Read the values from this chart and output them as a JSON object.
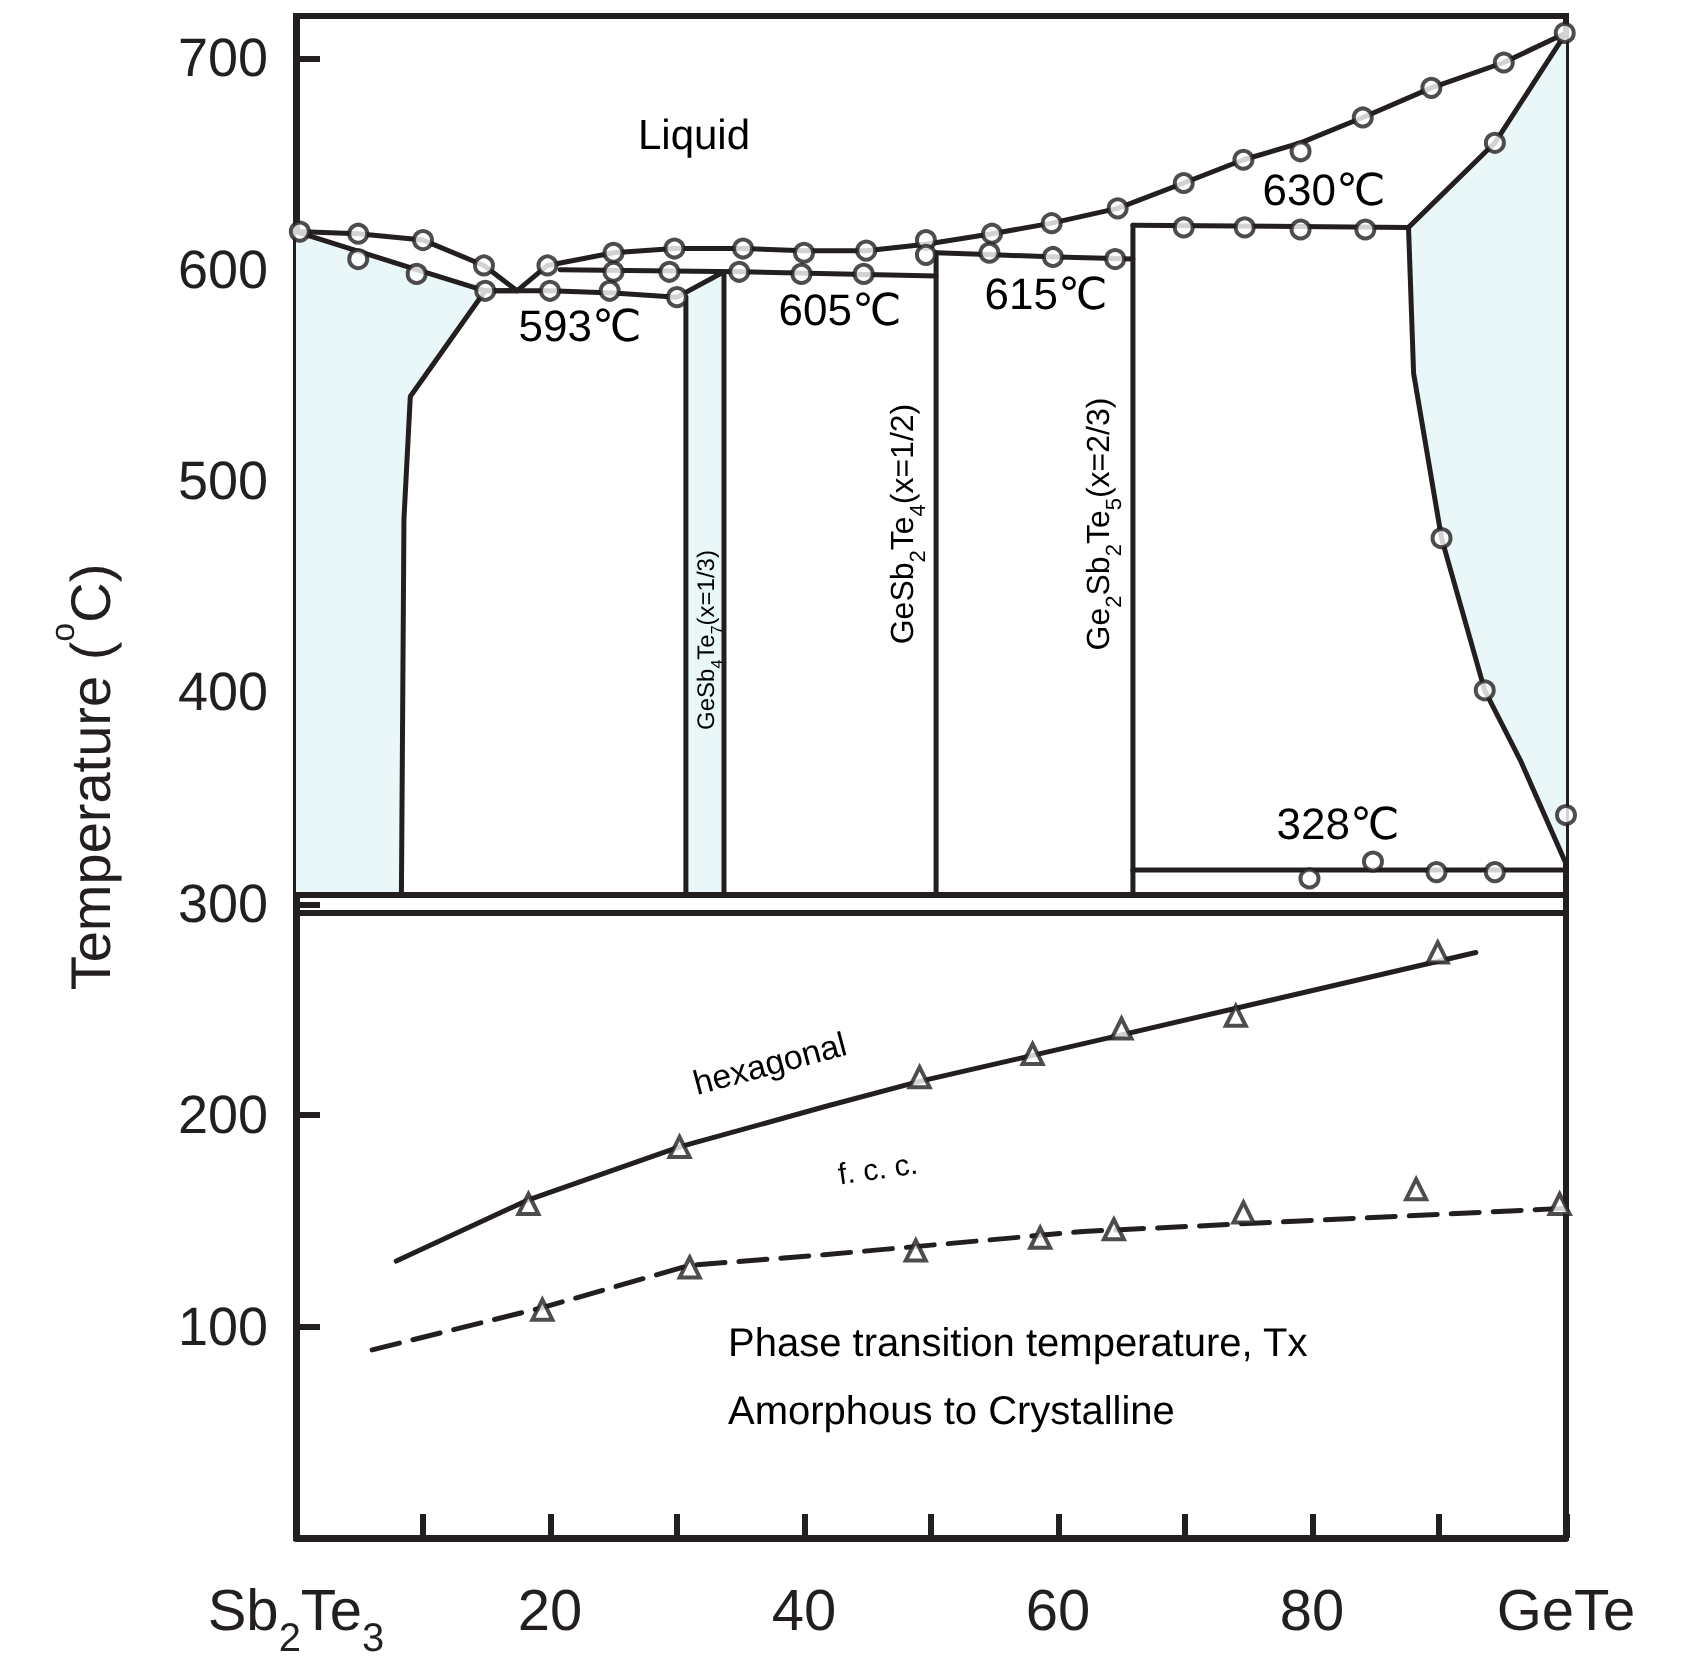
{
  "chart_data": {
    "type": "line",
    "ylabel": "Temperature ($^{o}$C)",
    "xlim": [
      0,
      100
    ],
    "ylim": [
      0,
      720
    ],
    "xticks": [
      {
        "value": 0,
        "label": "Sb$_{2}$Te$_{3}$"
      },
      {
        "value": 10,
        "label": null
      },
      20,
      {
        "value": 30,
        "label": null
      },
      40,
      {
        "value": 50,
        "label": null
      },
      60,
      {
        "value": 70,
        "label": null
      },
      80,
      {
        "value": 90,
        "label": null
      },
      {
        "value": 100,
        "label": "GeTe"
      }
    ],
    "yticks": [
      100,
      200,
      300,
      400,
      500,
      600,
      700
    ],
    "series": [
      {
        "color": "#231f20",
        "x": [
          0,
          4.9,
          10,
          14.8,
          17.4,
          19.8,
          25,
          29.8,
          35.2,
          40,
          44.9,
          49.6,
          54.8,
          59.5,
          64.7,
          69.9,
          74.6,
          79.1,
          84,
          89.4,
          95.1,
          100
        ],
        "values": [
          618,
          617,
          614,
          602,
          590,
          602,
          608,
          610,
          610,
          609,
          609,
          612,
          617,
          622,
          629,
          641,
          652,
          660,
          672,
          686,
          698,
          712
        ]
      },
      {
        "color": "#231f20",
        "x": [
          0,
          9.5,
          14.9,
          17.4
        ],
        "values": [
          618,
          600,
          590,
          590
        ]
      },
      {
        "color": "#231f20",
        "x": [
          14.9,
          20,
          25,
          30,
          33.7
        ],
        "values": [
          590,
          590,
          589,
          587,
          599
        ]
      },
      {
        "color": "#231f20",
        "x": [
          20.8,
          35,
          50.4
        ],
        "values": [
          600,
          599,
          597
        ]
      },
      {
        "color": "#231f20",
        "x": [
          50.4,
          55,
          60,
          65.9
        ],
        "values": [
          608,
          607,
          606,
          605
        ]
      },
      {
        "color": "#231f20",
        "x": [
          65.9,
          87.6
        ],
        "values": [
          621,
          620
        ]
      },
      {
        "color": "#231f20",
        "x": [
          87.6,
          94.4,
          100
        ],
        "values": [
          620,
          660,
          712
        ]
      },
      {
        "color": "#231f20",
        "x": [
          87.6,
          88,
          90.2,
          93.6,
          96.4,
          100
        ],
        "values": [
          620,
          551,
          473,
          401,
          368,
          319
        ]
      },
      {
        "color": "#231f20",
        "x": [
          14.9,
          9,
          8.5,
          8.3
        ],
        "values": [
          590,
          540,
          482,
          304
        ]
      },
      {
        "color": "#231f20",
        "x": [
          30.7,
          30.7
        ],
        "values": [
          304,
          587
        ]
      },
      {
        "color": "#231f20",
        "x": [
          33.7,
          33.7
        ],
        "values": [
          304,
          599
        ]
      },
      {
        "color": "#231f20",
        "x": [
          50.4,
          50.4
        ],
        "values": [
          304,
          608
        ]
      },
      {
        "color": "#231f20",
        "x": [
          65.9,
          65.9
        ],
        "values": [
          304,
          621
        ]
      },
      {
        "color": "#231f20",
        "x": [
          65.9,
          100
        ],
        "values": [
          316,
          316
        ]
      },
      {
        "color": "#231f20",
        "line_style": "solid",
        "x": [
          7.9,
          18.3,
          30.2,
          41.6,
          49.1,
          65,
          92.9
        ],
        "values": [
          131,
          160,
          185,
          204,
          216,
          238,
          277
        ]
      },
      {
        "color": "#231f20",
        "line_style": "dashed",
        "x": [
          6,
          19.4,
          31,
          41.6,
          62,
          100
        ],
        "values": [
          89,
          109,
          129,
          134,
          145,
          156
        ]
      },
      {
        "type": "scatter",
        "marker": "circle",
        "color": "#231f20",
        "x": [
          0.3,
          4.9,
          4.9,
          10,
          9.5,
          14.8,
          14.9,
          19.8,
          20,
          25,
          25,
          24.7,
          29.8,
          29.4,
          30,
          35.2,
          34.9,
          40,
          39.8,
          44.9,
          44.7,
          49.6,
          49.6,
          54.8,
          54.6,
          59.5,
          59.6,
          64.5,
          64.7,
          69.9,
          69.9,
          74.6,
          74.7,
          79.1,
          79.1,
          84,
          84.2,
          89.4,
          95.1,
          99.9,
          94.4,
          90.2,
          93.6,
          100,
          79.8,
          84.8,
          89.8,
          94.4
        ],
        "values": [
          618,
          617,
          605,
          614,
          598,
          602,
          590,
          602,
          590,
          608,
          599,
          590,
          610,
          599,
          587,
          610,
          599,
          608,
          598,
          609,
          598,
          614,
          607,
          617,
          608,
          622,
          606,
          605,
          629,
          641,
          620,
          652,
          620,
          656,
          619,
          672,
          619,
          686,
          698,
          712,
          660,
          473,
          401,
          342,
          312,
          320,
          315,
          315
        ]
      },
      {
        "type": "scatter",
        "marker": "triangle",
        "color": "#231f20",
        "x": [
          18.3,
          30.2,
          49.1,
          58,
          65,
          74,
          89.9
        ],
        "values": [
          158,
          185,
          218,
          229,
          241,
          247,
          277
        ]
      },
      {
        "type": "scatter",
        "marker": "triangle",
        "color": "#231f20",
        "x": [
          19.4,
          31,
          48.8,
          58.6,
          64.4,
          74.6,
          88.2,
          99.5
        ],
        "values": [
          108,
          128,
          136,
          142,
          146,
          154,
          165,
          158
        ]
      }
    ],
    "ref_lines": [
      {
        "axis": "y",
        "value": 304
      },
      {
        "axis": "y",
        "value": 296
      }
    ],
    "annotations": [
      "Liquid",
      "593℃",
      "605℃",
      "615℃",
      "630℃",
      "328℃",
      "GeSb$_{4}$Te$_{7}$(x=1/3)",
      "GeSb$_{2}$Te$_{4}$(x=1/2)",
      "Ge$_{2}$Sb$_{2}$Te$_{5}$(x=2/3)",
      "hexagonal",
      "f. c. c.",
      "Phase transition temperature, Tx",
      "Amorphous to Crystalline"
    ]
  }
}
